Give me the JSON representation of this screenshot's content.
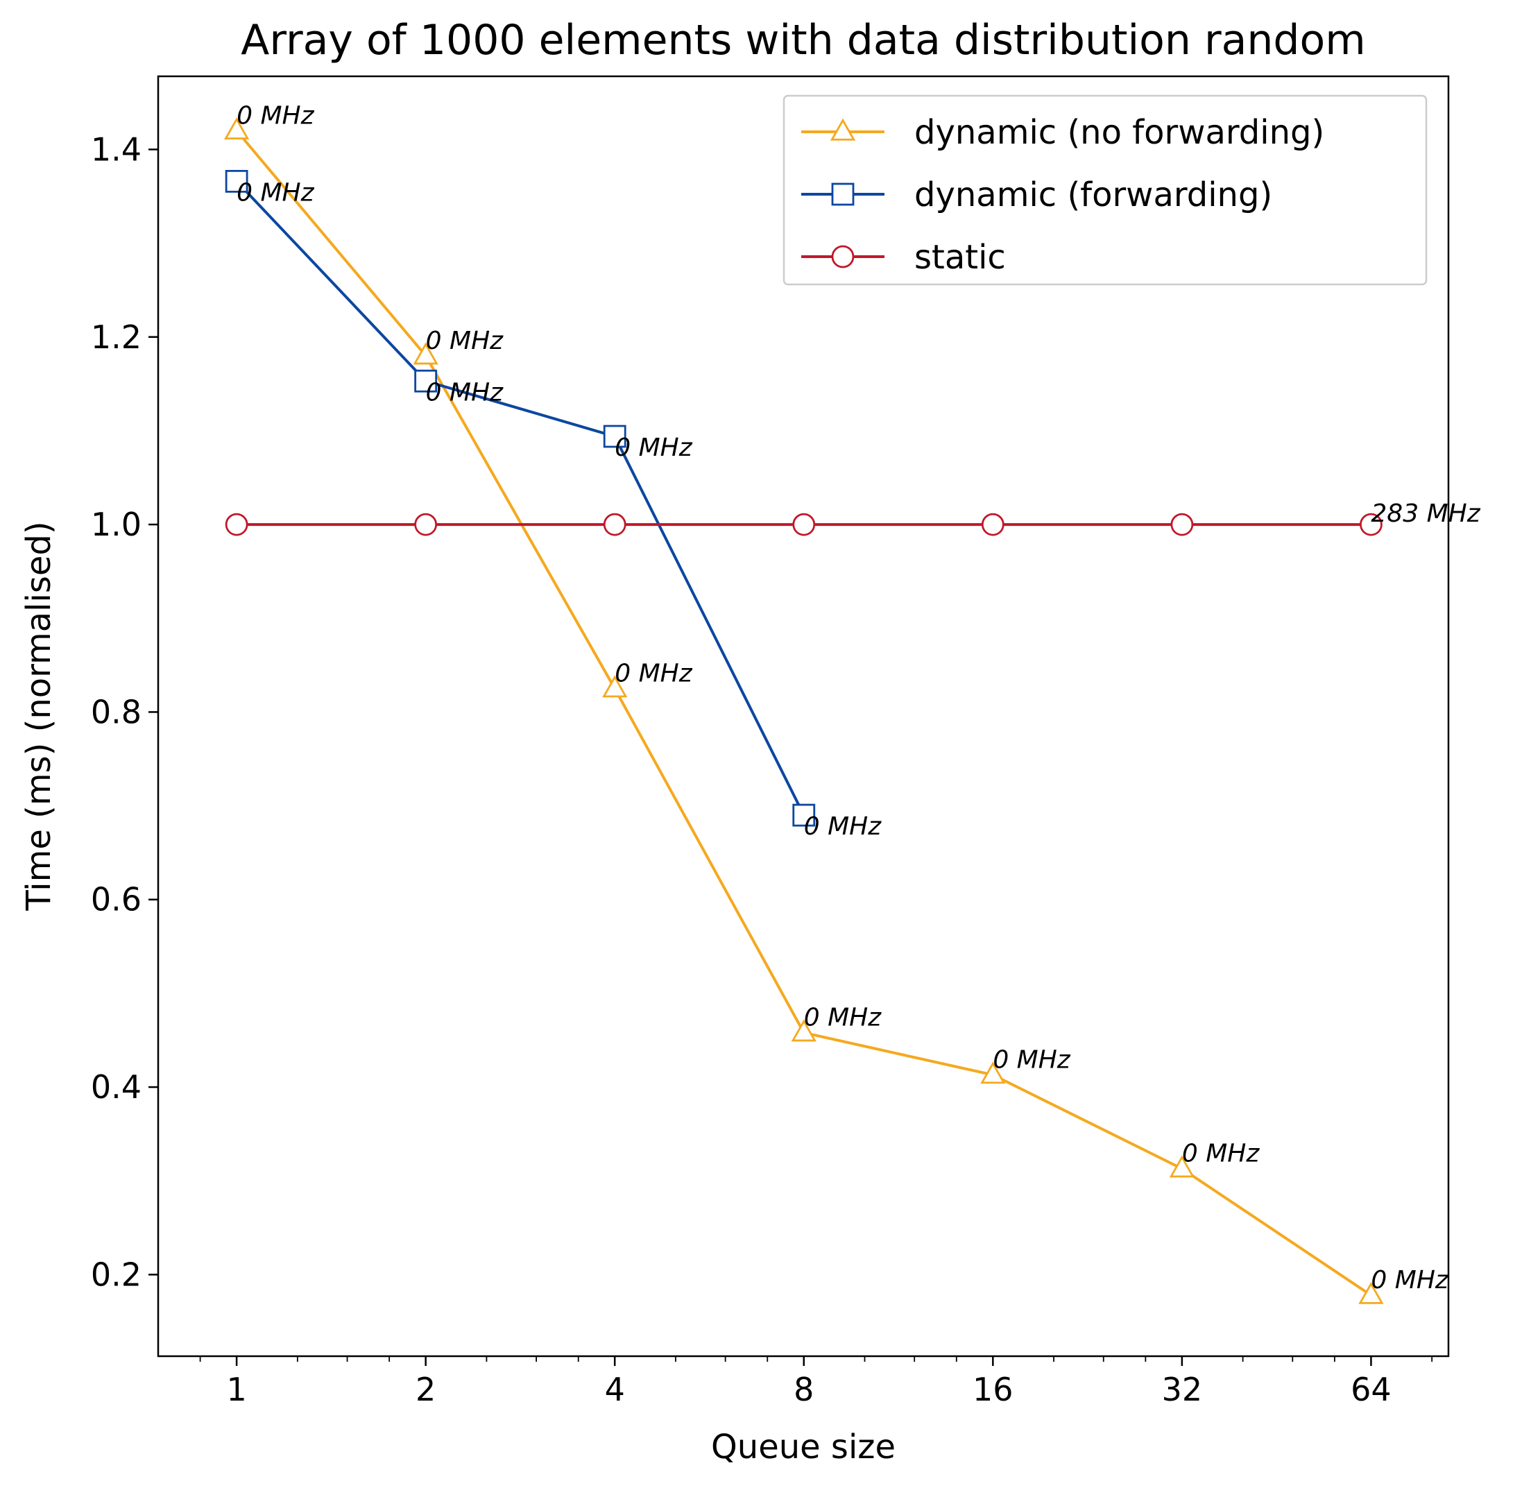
{
  "chart_data": {
    "type": "line",
    "title": "Array of 1000 elements with data distribution random",
    "xlabel": "Queue size",
    "ylabel": "Time (ms) (normalised)",
    "xscale": "log2",
    "x_ticks": [
      "1",
      "2",
      "4",
      "8",
      "16",
      "32",
      "64"
    ],
    "y_ticks": [
      "0.2",
      "0.4",
      "0.6",
      "0.8",
      "1.0",
      "1.2",
      "1.4"
    ],
    "xlim": [
      0.75,
      85
    ],
    "ylim": [
      0.113,
      1.478
    ],
    "grid": false,
    "legend_position": "top-right",
    "series": [
      {
        "name": "dynamic (no forwarding)",
        "color": "#f5a91f",
        "marker": "triangle",
        "x": [
          1,
          2,
          4,
          8,
          16,
          32,
          64
        ],
        "y": [
          1.42,
          1.18,
          0.825,
          0.458,
          0.413,
          0.313,
          0.178
        ],
        "labels": [
          "0 MHz",
          "0 MHz",
          "0 MHz",
          "0 MHz",
          "0 MHz",
          "0 MHz",
          "0 MHz"
        ]
      },
      {
        "name": "dynamic (forwarding)",
        "color": "#0b47a1",
        "marker": "square",
        "x": [
          1,
          2,
          4,
          8
        ],
        "y": [
          1.366,
          1.153,
          1.094,
          0.69
        ],
        "labels": [
          "0 MHz",
          "0 MHz",
          "0 MHz",
          "0 MHz"
        ]
      },
      {
        "name": "static",
        "color": "#c0182a",
        "marker": "circle",
        "x": [
          1,
          2,
          4,
          8,
          16,
          32,
          64
        ],
        "y": [
          1.0,
          1.0,
          1.0,
          1.0,
          1.0,
          1.0,
          1.0
        ],
        "labels": [
          "",
          "",
          "",
          "",
          "",
          "",
          "283 MHz"
        ]
      }
    ]
  }
}
